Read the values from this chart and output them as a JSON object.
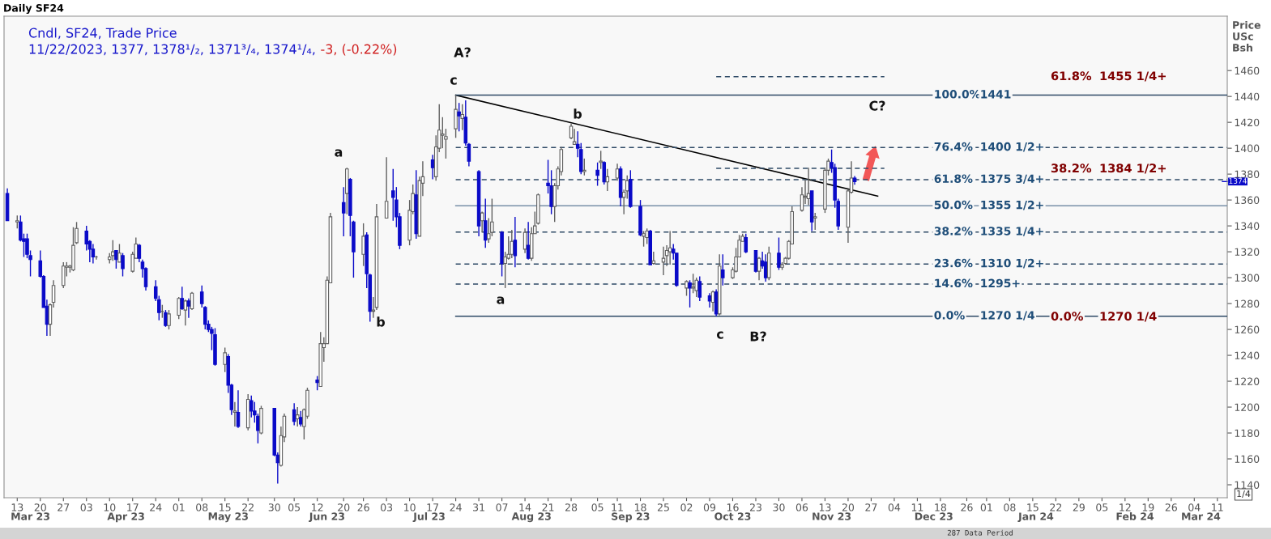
{
  "chart_data": {
    "type": "candlestick",
    "title": "Daily SF24",
    "subtitle": "Cndl, SF24, Trade Price",
    "ylabel": "Price\nUSc\nBsh",
    "colors": [
      "#0a0ac8",
      "#ffffff",
      "#0a0ac8",
      "#0a0ac8",
      "#0a0ac8",
      "#0a0ac8",
      "#0a0ac8",
      "#0a0ac8",
      "#0a0ac8",
      "#ffffff",
      "#ffffff",
      "#ffffff",
      "#ffffff",
      "#ffffff",
      "#ffffff",
      "#ffffff",
      "#0a0ac8",
      "#0a0ac8",
      "#0a0ac8",
      "#606060",
      "#ffffff",
      "#ffffff",
      "#0a0ac8",
      "#ffffff",
      "#0a0ac8",
      "#ffffff",
      "#ffffff",
      "#0a0ac8",
      "#0a0ac8",
      "#0a0ac8",
      "#0a0ac8",
      "#0a0ac8",
      "#606060",
      "#0a0ac8",
      "#ffffff",
      "#ffffff",
      "#0a0ac8",
      "#ffffff",
      "#0a0ac8",
      "#ffffff",
      "#0a0ac8",
      "#0a0ac8",
      "#0a0ac8",
      "#0a0ac8",
      "#0a0ac8",
      "#ffffff",
      "#0a0ac8",
      "#0a0ac8",
      "#ffffff",
      "#0a0ac8",
      "#ffffff",
      "#0a0ac8",
      "#0a0ac8",
      "#0a0ac8",
      "#ffffff",
      "#0a0ac8",
      "#0a0ac8",
      "#ffffff",
      "#ffffff",
      "#0a0ac8",
      "#ffffff",
      "#0a0ac8",
      "#ffffff",
      "#ffffff",
      "#0a0ac8",
      "#ffffff",
      "#ffffff",
      "#ffffff",
      "#ffffff",
      "#0a0ac8",
      "#ffffff",
      "#0a0ac8",
      "#0a0ac8",
      "#ffffff",
      "#0a0ac8",
      "#0a0ac8",
      "#ffffff",
      "#ffffff",
      "#ffffff",
      "#0a0ac8",
      "#0a0ac8",
      "#0a0ac8",
      "#ffffff",
      "#ffffff",
      "#0a0ac8",
      "#ffffff",
      "#ffffff",
      "#0a0ac8",
      "#ffffff",
      "#ffffff",
      "#ffffff",
      "#ffffff",
      "#ffffff",
      "#0a0ac8",
      "#ffffff",
      "#0a0ac8",
      "#0a0ac8",
      "#0a0ac8",
      "#ffffff",
      "#0a0ac8",
      "#ffffff",
      "#ffffff",
      "#0a0ac8",
      "#ffffff",
      "#ffffff",
      "#ffffff",
      "#0a0ac8",
      "#ffffff",
      "#0a0ac8",
      "#ffffff",
      "#ffffff",
      "#ffffff",
      "#0a0ac8",
      "#0a0ac8",
      "#ffffff",
      "#ffffff",
      "#ffffff",
      "#ffffff",
      "#ffffff",
      "#0a0ac8",
      "#0a0ac8",
      "#ffffff",
      "#0a0ac8",
      "#ffffff",
      "#0a0ac8",
      "#ffffff",
      "#ffffff",
      "#0a0ac8",
      "#ffffff",
      "#ffffff",
      "#0a0ac8",
      "#0a0ac8",
      "#ffffff",
      "#ffffff",
      "#0a0ac8",
      "#ffffff",
      "#ffffff",
      "#ffffff",
      "#ffffff",
      "#0a0ac8",
      "#0a0ac8",
      "#ffffff",
      "#0a0ac8",
      "#ffffff",
      "#ffffff",
      "#0a0ac8",
      "#0a0ac8",
      "#ffffff",
      "#0a0ac8",
      "#ffffff",
      "#0a0ac8",
      "#ffffff",
      "#ffffff",
      "#ffffff",
      "#ffffff",
      "#0a0ac8",
      "#0a0ac8",
      "#ffffff",
      "#0a0ac8",
      "#0a0ac8",
      "#ffffff",
      "#0a0ac8",
      "#ffffff",
      "#ffffff",
      "#ffffff",
      "#ffffff",
      "#ffffff",
      "#ffffff",
      "#ffffff",
      "#0a0ac8",
      "#ffffff",
      "#ffffff",
      "#ffffff",
      "#0a0ac8",
      "#0a0ac8",
      "#0a0ac8",
      "#ffffff",
      "#ffffff",
      "#0a0ac8"
    ],
    "x": [
      "2023-03-10",
      "2023-03-13",
      "2023-03-14",
      "2023-03-15",
      "2023-03-16",
      "2023-03-17",
      "2023-03-20",
      "2023-03-21",
      "2023-03-22",
      "2023-03-23",
      "2023-03-24",
      "2023-03-27",
      "2023-03-28",
      "2023-03-29",
      "2023-03-30",
      "2023-03-31",
      "2023-04-03",
      "2023-04-04",
      "2023-04-05",
      "2023-04-06",
      "2023-04-10",
      "2023-04-11",
      "2023-04-12",
      "2023-04-13",
      "2023-04-14",
      "2023-04-17",
      "2023-04-18",
      "2023-04-19",
      "2023-04-20",
      "2023-04-21",
      "2023-04-24",
      "2023-04-25",
      "2023-04-26",
      "2023-04-27",
      "2023-04-28",
      "2023-05-01",
      "2023-05-02",
      "2023-05-03",
      "2023-05-04",
      "2023-05-05",
      "2023-05-08",
      "2023-05-09",
      "2023-05-10",
      "2023-05-11",
      "2023-05-12",
      "2023-05-15",
      "2023-05-16",
      "2023-05-17",
      "2023-05-18",
      "2023-05-19",
      "2023-05-22",
      "2023-05-23",
      "2023-05-24",
      "2023-05-25",
      "2023-05-26",
      "2023-05-30",
      "2023-05-31",
      "2023-06-01",
      "2023-06-02",
      "2023-06-05",
      "2023-06-06",
      "2023-06-07",
      "2023-06-08",
      "2023-06-09",
      "2023-06-12",
      "2023-06-13",
      "2023-06-14",
      "2023-06-15",
      "2023-06-16",
      "2023-06-20",
      "2023-06-21",
      "2023-06-22",
      "2023-06-23",
      "2023-06-26",
      "2023-06-27",
      "2023-06-28",
      "2023-06-29",
      "2023-06-30",
      "2023-07-03",
      "2023-07-05",
      "2023-07-06",
      "2023-07-07",
      "2023-07-10",
      "2023-07-11",
      "2023-07-12",
      "2023-07-13",
      "2023-07-14",
      "2023-07-17",
      "2023-07-18",
      "2023-07-19",
      "2023-07-20",
      "2023-07-21",
      "2023-07-24",
      "2023-07-25",
      "2023-07-26",
      "2023-07-27",
      "2023-07-28",
      "2023-07-31",
      "2023-08-01",
      "2023-08-02",
      "2023-08-03",
      "2023-08-04",
      "2023-08-07",
      "2023-08-08",
      "2023-08-09",
      "2023-08-10",
      "2023-08-11",
      "2023-08-14",
      "2023-08-15",
      "2023-08-16",
      "2023-08-17",
      "2023-08-18",
      "2023-08-21",
      "2023-08-22",
      "2023-08-23",
      "2023-08-24",
      "2023-08-25",
      "2023-08-28",
      "2023-08-29",
      "2023-08-30",
      "2023-08-31",
      "2023-09-01",
      "2023-09-05",
      "2023-09-06",
      "2023-09-07",
      "2023-09-08",
      "2023-09-11",
      "2023-09-12",
      "2023-09-13",
      "2023-09-14",
      "2023-09-15",
      "2023-09-18",
      "2023-09-19",
      "2023-09-20",
      "2023-09-21",
      "2023-09-22",
      "2023-09-25",
      "2023-09-26",
      "2023-09-27",
      "2023-09-28",
      "2023-09-29",
      "2023-10-02",
      "2023-10-03",
      "2023-10-04",
      "2023-10-05",
      "2023-10-06",
      "2023-10-09",
      "2023-10-10",
      "2023-10-11",
      "2023-10-12",
      "2023-10-13",
      "2023-10-16",
      "2023-10-17",
      "2023-10-18",
      "2023-10-19",
      "2023-10-20",
      "2023-10-23",
      "2023-10-24",
      "2023-10-25",
      "2023-10-26",
      "2023-10-27",
      "2023-10-30",
      "2023-10-31",
      "2023-11-01",
      "2023-11-02",
      "2023-11-03",
      "2023-11-06",
      "2023-11-07",
      "2023-11-08",
      "2023-11-09",
      "2023-11-10",
      "2023-11-13",
      "2023-11-14",
      "2023-11-15",
      "2023-11-16",
      "2023-11-17",
      "2023-11-20",
      "2023-11-21",
      "2023-11-22"
    ],
    "ohlc": [
      [
        1365,
        1369,
        1344,
        1344
      ],
      [
        1343,
        1348,
        1338,
        1344
      ],
      [
        1343,
        1348,
        1328,
        1329
      ],
      [
        1330,
        1334,
        1316,
        1328
      ],
      [
        1330,
        1334,
        1315,
        1318
      ],
      [
        1317,
        1321,
        1301,
        1314
      ],
      [
        1313,
        1321,
        1300,
        1301
      ],
      [
        1301,
        1302,
        1277,
        1277
      ],
      [
        1278,
        1283,
        1255,
        1264
      ],
      [
        1264,
        1280,
        1255,
        1279
      ],
      [
        1281,
        1298,
        1277,
        1294
      ],
      [
        1294,
        1312,
        1292,
        1309
      ],
      [
        1308,
        1312,
        1301,
        1309
      ],
      [
        1308,
        1310,
        1304,
        1309
      ],
      [
        1306,
        1339,
        1305,
        1325
      ],
      [
        1327,
        1343,
        1326,
        1338
      ],
      [
        1336,
        1340,
        1321,
        1326
      ],
      [
        1328,
        1329,
        1312,
        1322
      ],
      [
        1322,
        1326,
        1311,
        1316
      ],
      [
        1316,
        1317,
        1314,
        1316
      ],
      [
        1314,
        1319,
        1311,
        1316
      ],
      [
        1317,
        1329,
        1313,
        1320
      ],
      [
        1321,
        1321,
        1307,
        1314
      ],
      [
        1312,
        1326,
        1312,
        1319
      ],
      [
        1317,
        1319,
        1301,
        1307
      ],
      [
        1305,
        1320,
        1304,
        1318
      ],
      [
        1315,
        1331,
        1315,
        1326
      ],
      [
        1325,
        1326,
        1312,
        1315
      ],
      [
        1312,
        1314,
        1300,
        1307
      ],
      [
        1307,
        1308,
        1290,
        1293
      ],
      [
        1293,
        1298,
        1282,
        1284
      ],
      [
        1283,
        1286,
        1267,
        1273
      ],
      [
        1274,
        1279,
        1269,
        1274
      ],
      [
        1273,
        1275,
        1262,
        1263
      ],
      [
        1263,
        1275,
        1260,
        1272
      ],
      [
        1271,
        1285,
        1268,
        1284
      ],
      [
        1284,
        1293,
        1275,
        1276
      ],
      [
        1275,
        1283,
        1263,
        1282
      ],
      [
        1282,
        1284,
        1269,
        1278
      ],
      [
        1276,
        1289,
        1275,
        1288
      ],
      [
        1289,
        1294,
        1277,
        1280
      ],
      [
        1277,
        1278,
        1260,
        1264
      ],
      [
        1264,
        1267,
        1258,
        1260
      ],
      [
        1260,
        1262,
        1244,
        1257
      ],
      [
        1256,
        1261,
        1232,
        1233
      ],
      [
        1233,
        1246,
        1227,
        1242
      ],
      [
        1239,
        1241,
        1211,
        1217
      ],
      [
        1217,
        1218,
        1194,
        1198
      ],
      [
        1196,
        1204,
        1185,
        1197
      ],
      [
        1196,
        1213,
        1184,
        1185
      ],
      [
        1184,
        1210,
        1182,
        1206
      ],
      [
        1205,
        1209,
        1192,
        1197
      ],
      [
        1197,
        1204,
        1188,
        1194
      ],
      [
        1193,
        1195,
        1172,
        1182
      ],
      [
        1180,
        1201,
        1179,
        1199
      ],
      [
        1199,
        1199,
        1162,
        1163
      ],
      [
        1163,
        1165,
        1141,
        1157
      ],
      [
        1155,
        1185,
        1154,
        1178
      ],
      [
        1177,
        1195,
        1173,
        1193
      ],
      [
        1198,
        1203,
        1186,
        1189
      ],
      [
        1191,
        1200,
        1185,
        1194
      ],
      [
        1192,
        1197,
        1185,
        1187
      ],
      [
        1185,
        1199,
        1175,
        1198
      ],
      [
        1193,
        1215,
        1191,
        1213
      ],
      [
        1221,
        1224,
        1213,
        1219
      ],
      [
        1216,
        1258,
        1216,
        1249
      ],
      [
        1246,
        1254,
        1235,
        1249
      ],
      [
        1249,
        1301,
        1249,
        1298
      ],
      [
        1296,
        1350,
        1296,
        1347
      ],
      [
        1358,
        1370,
        1332,
        1350
      ],
      [
        1365,
        1385,
        1349,
        1384
      ],
      [
        1376,
        1377,
        1332,
        1348
      ],
      [
        1343,
        1344,
        1300,
        1320
      ],
      [
        1318,
        1342,
        1309,
        1332
      ],
      [
        1333,
        1335,
        1292,
        1303
      ],
      [
        1302,
        1303,
        1266,
        1274
      ],
      [
        1274,
        1285,
        1269,
        1275
      ],
      [
        1277,
        1357,
        1275,
        1347
      ],
      [
        1346,
        1393,
        1346,
        1359
      ],
      [
        1367,
        1384,
        1344,
        1362
      ],
      [
        1360,
        1370,
        1339,
        1347
      ],
      [
        1347,
        1350,
        1322,
        1325
      ],
      [
        1329,
        1360,
        1325,
        1352
      ],
      [
        1351,
        1372,
        1349,
        1365
      ],
      [
        1364,
        1383,
        1330,
        1334
      ],
      [
        1332,
        1378,
        1332,
        1375
      ],
      [
        1373,
        1390,
        1363,
        1378
      ],
      [
        1391,
        1395,
        1376,
        1385
      ],
      [
        1378,
        1410,
        1375,
        1401
      ],
      [
        1400,
        1434,
        1397,
        1414
      ],
      [
        1410,
        1424,
        1400,
        1411
      ],
      [
        1407,
        1415,
        1392,
        1409
      ],
      [
        1415,
        1441,
        1408,
        1430
      ],
      [
        1428,
        1435,
        1413,
        1425
      ],
      [
        1423,
        1434,
        1414,
        1426
      ],
      [
        1424,
        1437,
        1402,
        1404
      ],
      [
        1403,
        1404,
        1386,
        1390
      ],
      [
        1382,
        1383,
        1332,
        1340
      ],
      [
        1344,
        1351,
        1335,
        1350
      ],
      [
        1344,
        1361,
        1323,
        1329
      ],
      [
        1330,
        1346,
        1327,
        1334
      ],
      [
        1335,
        1361,
        1332,
        1343
      ],
      [
        1335,
        1336,
        1301,
        1311
      ],
      [
        1311,
        1320,
        1292,
        1316
      ],
      [
        1315,
        1332,
        1314,
        1318
      ],
      [
        1318,
        1337,
        1315,
        1328
      ],
      [
        1329,
        1347,
        1308,
        1317
      ],
      [
        1322,
        1338,
        1319,
        1335
      ],
      [
        1325,
        1343,
        1314,
        1315
      ],
      [
        1315,
        1339,
        1313,
        1334
      ],
      [
        1334,
        1351,
        1334,
        1340
      ],
      [
        1342,
        1365,
        1341,
        1364
      ],
      [
        1373,
        1391,
        1365,
        1371
      ],
      [
        1371,
        1383,
        1349,
        1355
      ],
      [
        1355,
        1373,
        1343,
        1371
      ],
      [
        1371,
        1386,
        1368,
        1384
      ],
      [
        1382,
        1401,
        1379,
        1399
      ],
      [
        1408,
        1419,
        1407,
        1417
      ],
      [
        1403,
        1415,
        1403,
        1405
      ],
      [
        1403,
        1413,
        1393,
        1400
      ],
      [
        1399,
        1404,
        1380,
        1382
      ],
      [
        1382,
        1392,
        1379,
        1383
      ],
      [
        1383,
        1389,
        1371,
        1379
      ],
      [
        1389,
        1398,
        1384,
        1390
      ],
      [
        1389,
        1390,
        1372,
        1374
      ],
      [
        1374,
        1384,
        1367,
        1378
      ],
      [
        1377,
        1388,
        1375,
        1384
      ],
      [
        1384,
        1386,
        1355,
        1362
      ],
      [
        1362,
        1368,
        1349,
        1366
      ],
      [
        1367,
        1379,
        1361,
        1375
      ],
      [
        1376,
        1383,
        1354,
        1355
      ],
      [
        1355,
        1360,
        1332,
        1333
      ],
      [
        1332,
        1336,
        1324,
        1334
      ],
      [
        1331,
        1338,
        1326,
        1336
      ],
      [
        1336,
        1337,
        1310,
        1310
      ],
      [
        1311,
        1320,
        1310,
        1313
      ],
      [
        1312,
        1324,
        1302,
        1315
      ],
      [
        1317,
        1325,
        1309,
        1321
      ],
      [
        1320,
        1336,
        1310,
        1323
      ],
      [
        1322,
        1326,
        1314,
        1319
      ],
      [
        1319,
        1319,
        1293,
        1294
      ],
      [
        1292,
        1298,
        1286,
        1297
      ],
      [
        1296,
        1298,
        1277,
        1292
      ],
      [
        1292,
        1303,
        1288,
        1293
      ],
      [
        1290,
        1300,
        1285,
        1298
      ],
      [
        1297,
        1301,
        1282,
        1285
      ],
      [
        1286,
        1288,
        1277,
        1282
      ],
      [
        1281,
        1290,
        1274,
        1289
      ],
      [
        1289,
        1291,
        1270.25,
        1272
      ],
      [
        1272,
        1318,
        1271,
        1309
      ],
      [
        1306,
        1318,
        1294,
        1300
      ],
      [
        1300,
        1308,
        1299,
        1306
      ],
      [
        1305,
        1323,
        1304,
        1316
      ],
      [
        1316,
        1333,
        1316,
        1329
      ],
      [
        1328,
        1334,
        1328,
        1332
      ],
      [
        1331,
        1334,
        1319,
        1320
      ],
      [
        1321,
        1321,
        1304,
        1305
      ],
      [
        1305,
        1316,
        1298,
        1315
      ],
      [
        1313,
        1320,
        1307,
        1309
      ],
      [
        1312,
        1318,
        1297,
        1300
      ],
      [
        1300,
        1324,
        1298,
        1319
      ],
      [
        1319,
        1331,
        1306,
        1308
      ],
      [
        1308,
        1312,
        1306,
        1310
      ],
      [
        1311,
        1316,
        1310,
        1315
      ],
      [
        1315,
        1329,
        1314,
        1328
      ],
      [
        1326,
        1355,
        1326,
        1351
      ],
      [
        1352,
        1370,
        1351,
        1364
      ],
      [
        1362,
        1376,
        1357,
        1363
      ],
      [
        1361,
        1385,
        1356,
        1365
      ],
      [
        1367,
        1367,
        1336,
        1343
      ],
      [
        1346,
        1350,
        1337,
        1347
      ],
      [
        1353,
        1385,
        1350,
        1383
      ],
      [
        1383,
        1392,
        1379,
        1390
      ],
      [
        1389,
        1399,
        1381,
        1385
      ],
      [
        1385,
        1388,
        1354,
        1360
      ],
      [
        1359,
        1361,
        1337,
        1340
      ],
      [
        1339,
        1368,
        1327,
        1367
      ],
      [
        1366,
        1390,
        1365,
        1377
      ],
      [
        1377,
        1378.5,
        1371.75,
        1374.25
      ]
    ],
    "series": [
      {
        "type": "line",
        "x": [
          "2023-07-24",
          "2023-11-29"
        ],
        "values": [
          1441,
          1363
        ],
        "color": "#000000",
        "line_style": "solid"
      },
      {
        "type": "line",
        "x": [
          "2023-07-24",
          "2024-03-14"
        ],
        "values": [
          1441,
          1441
        ],
        "color": "#2e4a66",
        "line_style": "solid"
      },
      {
        "type": "line",
        "x": [
          "2023-07-24",
          "2024-03-14"
        ],
        "values": [
          1400.5,
          1400.5
        ],
        "color": "#2e4a66",
        "line_style": "dashed"
      },
      {
        "type": "line",
        "x": [
          "2023-07-24",
          "2024-03-14"
        ],
        "values": [
          1375.75,
          1375.75
        ],
        "color": "#2e4a66",
        "line_style": "dashed"
      },
      {
        "type": "line",
        "x": [
          "2023-07-24",
          "2024-03-14"
        ],
        "values": [
          1355.5,
          1355.5
        ],
        "color": "#7890a8",
        "line_style": "solid"
      },
      {
        "type": "line",
        "x": [
          "2023-07-24",
          "2024-03-14"
        ],
        "values": [
          1335.25,
          1335.25
        ],
        "color": "#2e4a66",
        "line_style": "dashed"
      },
      {
        "type": "line",
        "x": [
          "2023-07-24",
          "2024-03-14"
        ],
        "values": [
          1310.5,
          1310.5
        ],
        "color": "#2e4a66",
        "line_style": "dashed"
      },
      {
        "type": "line",
        "x": [
          "2023-07-24",
          "2024-03-14"
        ],
        "values": [
          1295,
          1295
        ],
        "color": "#2e4a66",
        "line_style": "dashed"
      },
      {
        "type": "line",
        "x": [
          "2023-07-24",
          "2024-03-14"
        ],
        "values": [
          1270.25,
          1270.25
        ],
        "color": "#2e4a66",
        "line_style": "solid"
      },
      {
        "type": "line",
        "x": [
          "2023-10-11",
          "2023-12-01"
        ],
        "values": [
          1455.25,
          1455.25
        ],
        "color": "#2e4a66",
        "line_style": "dashed"
      },
      {
        "type": "line",
        "x": [
          "2023-10-11",
          "2023-12-01"
        ],
        "values": [
          1384.5,
          1384.5
        ],
        "color": "#2e4a66",
        "line_style": "dashed"
      }
    ],
    "ylim": [
      1130,
      1502
    ],
    "yticks": [
      1140,
      1160,
      1180,
      1200,
      1220,
      1240,
      1260,
      1280,
      1300,
      1320,
      1340,
      1360,
      1380,
      1400,
      1420,
      1440,
      1460
    ],
    "xlim": [
      "2023-03-09",
      "2024-03-14"
    ],
    "xticks": [
      {
        "value": "2023-03-13",
        "label": "13"
      },
      {
        "value": "2023-03-20",
        "label": "20"
      },
      {
        "value": "2023-03-27",
        "label": "27"
      },
      {
        "value": "2023-04-03",
        "label": "03"
      },
      {
        "value": "2023-04-10",
        "label": "10"
      },
      {
        "value": "2023-04-17",
        "label": "17"
      },
      {
        "value": "2023-04-24",
        "label": "24"
      },
      {
        "value": "2023-05-01",
        "label": "01"
      },
      {
        "value": "2023-05-08",
        "label": "08"
      },
      {
        "value": "2023-05-15",
        "label": "15"
      },
      {
        "value": "2023-05-22",
        "label": "22"
      },
      {
        "value": "2023-05-30",
        "label": "30"
      },
      {
        "value": "2023-06-05",
        "label": "05"
      },
      {
        "value": "2023-06-12",
        "label": "12"
      },
      {
        "value": "2023-06-20",
        "label": "20"
      },
      {
        "value": "2023-06-26",
        "label": "26"
      },
      {
        "value": "2023-07-03",
        "label": "03"
      },
      {
        "value": "2023-07-10",
        "label": "10"
      },
      {
        "value": "2023-07-17",
        "label": "17"
      },
      {
        "value": "2023-07-24",
        "label": "24"
      },
      {
        "value": "2023-07-31",
        "label": "31"
      },
      {
        "value": "2023-08-07",
        "label": "07"
      },
      {
        "value": "2023-08-14",
        "label": "14"
      },
      {
        "value": "2023-08-21",
        "label": "21"
      },
      {
        "value": "2023-08-28",
        "label": "28"
      },
      {
        "value": "2023-09-05",
        "label": "05"
      },
      {
        "value": "2023-09-11",
        "label": "11"
      },
      {
        "value": "2023-09-18",
        "label": "18"
      },
      {
        "value": "2023-09-25",
        "label": "25"
      },
      {
        "value": "2023-10-02",
        "label": "02"
      },
      {
        "value": "2023-10-09",
        "label": "09"
      },
      {
        "value": "2023-10-16",
        "label": "16"
      },
      {
        "value": "2023-10-23",
        "label": "23"
      },
      {
        "value": "2023-10-30",
        "label": "30"
      },
      {
        "value": "2023-11-06",
        "label": "06"
      },
      {
        "value": "2023-11-13",
        "label": "13"
      },
      {
        "value": "2023-11-20",
        "label": "20"
      },
      {
        "value": "2023-11-27",
        "label": "27"
      },
      {
        "value": "2023-12-04",
        "label": "04"
      },
      {
        "value": "2023-12-11",
        "label": "11"
      },
      {
        "value": "2023-12-18",
        "label": "18"
      },
      {
        "value": "2023-12-26",
        "label": "26"
      },
      {
        "value": "2024-01-01",
        "label": "01"
      },
      {
        "value": "2024-01-08",
        "label": "08"
      },
      {
        "value": "2024-01-15",
        "label": "15"
      },
      {
        "value": "2024-01-22",
        "label": "22"
      },
      {
        "value": "2024-01-29",
        "label": "29"
      },
      {
        "value": "2024-02-05",
        "label": "05"
      },
      {
        "value": "2024-02-12",
        "label": "12"
      },
      {
        "value": "2024-02-19",
        "label": "19"
      },
      {
        "value": "2024-02-26",
        "label": "26"
      },
      {
        "value": "2024-03-04",
        "label": "04"
      },
      {
        "value": "2024-03-11",
        "label": "11"
      }
    ],
    "x2lim": [
      "2023-03-09",
      "2024-03-14"
    ],
    "x2ticks": [
      {
        "value": "2023-03-17",
        "label": "Mar 23"
      },
      {
        "value": "2023-04-15",
        "label": "Apr 23"
      },
      {
        "value": "2023-05-16",
        "label": "May 23"
      },
      {
        "value": "2023-06-15",
        "label": "Jun 23"
      },
      {
        "value": "2023-07-16",
        "label": "Jul 23"
      },
      {
        "value": "2023-08-16",
        "label": "Aug 23"
      },
      {
        "value": "2023-09-15",
        "label": "Sep 23"
      },
      {
        "value": "2023-10-16",
        "label": "Oct 23"
      },
      {
        "value": "2023-11-15",
        "label": "Nov 23"
      },
      {
        "value": "2023-12-16",
        "label": "Dec 23"
      },
      {
        "value": "2024-01-16",
        "label": "Jan 24"
      },
      {
        "value": "2024-02-15",
        "label": "Feb 24"
      },
      {
        "value": "2024-03-06",
        "label": "Mar 24"
      }
    ],
    "ref_lines": [
      {
        "axis": "y",
        "value": 1374.25,
        "label": "1374",
        "color": "#0a0ac8"
      }
    ],
    "annotations": [
      "11/22/2023, 1377, 1378¹/₂, 1371³/₄, 1374¹/₄,",
      "-3, (-0.22%)",
      "1/4",
      "287 Data Period",
      "A?",
      "c",
      "a",
      "b",
      "b",
      "a",
      "c",
      "B?",
      "C?",
      "61.8%",
      "1455 1/4+",
      "38.2%",
      "1384 1/2+",
      "0.0%",
      "1270 1/4",
      {
        "text": "100.0%",
        "x": "2023-12-16",
        "y": 1441
      },
      {
        "text": "1441",
        "x": "2023-12-30",
        "y": 1441
      },
      {
        "text": "76.4%",
        "x": "2023-12-16",
        "y": 1400.5
      },
      {
        "text": "1400 1/2+",
        "x": "2023-12-30",
        "y": 1400.5
      },
      {
        "text": "61.8%",
        "x": "2023-12-16",
        "y": 1375.75
      },
      {
        "text": "1375 3/4+",
        "x": "2023-12-30",
        "y": 1375.75
      },
      {
        "text": "50.0%",
        "x": "2023-12-16",
        "y": 1355.5
      },
      {
        "text": "1355 1/2+",
        "x": "2023-12-30",
        "y": 1355.5
      },
      {
        "text": "38.2%",
        "x": "2023-12-16",
        "y": 1335.25
      },
      {
        "text": "1335 1/4+",
        "x": "2023-12-30",
        "y": 1335.25
      },
      {
        "text": "23.6%",
        "x": "2023-12-16",
        "y": 1310.5
      },
      {
        "text": "1310 1/2+",
        "x": "2023-12-30",
        "y": 1310.5
      },
      {
        "text": "14.6%",
        "x": "2023-12-16",
        "y": 1295
      },
      {
        "text": "1295+",
        "x": "2023-12-30",
        "y": 1295
      },
      {
        "text": "0.0%",
        "x": "2023-12-16",
        "y": 1270.25
      },
      {
        "text": "1270 1/4",
        "x": "2023-12-30",
        "y": 1270.25
      }
    ]
  }
}
